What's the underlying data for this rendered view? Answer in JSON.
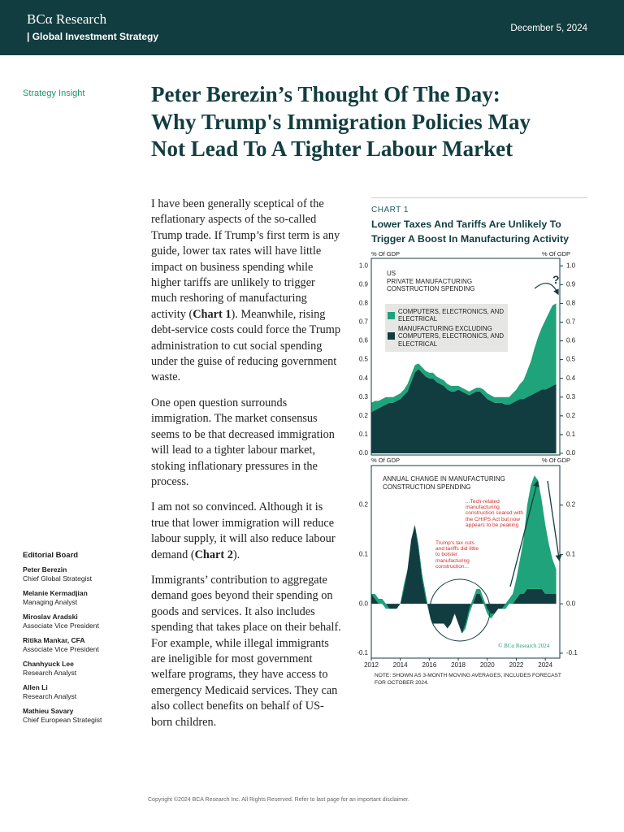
{
  "header": {
    "logo": "BCα Research",
    "subtitle": "| Global Investment Strategy",
    "date": "December 5, 2024"
  },
  "section_label": "Strategy Insight",
  "title_lines": [
    "Peter Berezin’s Thought Of The Day:",
    "Why Trump's Immigration Policies May",
    "Not Lead To A Tighter Labour Market"
  ],
  "body": {
    "paragraphs": [
      [
        "I have been generally sceptical of the reflationary aspects of the so-called Trump trade. If Trump’s first term is any guide, lower tax rates will have little impact on business spending while higher tariffs are unlikely to trigger much reshoring of manufacturing activity (",
        "Chart 1",
        "). Meanwhile, rising debt-service costs could force the Trump administration to cut social spending under the guise of reducing government waste."
      ],
      [
        "One open question surrounds immigration. The market consensus seems to be that decreased immigration will lead to a tighter labour market, stoking inflationary pressures in the process."
      ],
      [
        "I am not so convinced. Although it is true that lower immigration will reduce labour supply, it will also reduce labour demand (",
        "Chart 2",
        ")."
      ],
      [
        "Immigrants’ contribution to aggregate demand goes beyond their spending on goods and services. It also includes spending that takes place on their behalf. For example, while illegal immigrants are ineligible for most government welfare programs, they have access to emergency Medicaid services. They can also collect benefits on behalf of US-born children."
      ]
    ]
  },
  "editorial_board": {
    "title": "Editorial Board",
    "members": [
      {
        "name": "Peter Berezin",
        "role": "Chief Global Strategist"
      },
      {
        "name": "Melanie Kermadjian",
        "role": "Managing Analyst"
      },
      {
        "name": "Miroslav Aradski",
        "role": "Associate Vice President"
      },
      {
        "name": "Ritika Mankar, CFA",
        "role": "Associate Vice President"
      },
      {
        "name": "Chanhyuck Lee",
        "role": "Research Analyst"
      },
      {
        "name": "Allen Li",
        "role": "Research Analyst"
      },
      {
        "name": "Mathieu Savary",
        "role": "Chief European Strategist"
      }
    ]
  },
  "footer": "Copyright ©2024 BCA Research Inc. All Rights Reserved. Refer to last page for an important disclaimer.",
  "chart_data": [
    {
      "type": "area",
      "stacked": true,
      "label": "CHART 1",
      "title": "Lower Taxes And Tariffs Are Unlikely To Trigger A Boost In Manufacturing Activity",
      "ylabel": "% Of GDP",
      "annotations": [
        "US",
        "PRIVATE MANUFACTURING",
        "CONSTRUCTION SPENDING",
        "?"
      ],
      "x": [
        2012,
        2012.25,
        2012.5,
        2012.75,
        2013,
        2013.25,
        2013.5,
        2013.75,
        2014,
        2014.25,
        2014.5,
        2014.75,
        2015,
        2015.25,
        2015.5,
        2015.75,
        2016,
        2016.25,
        2016.5,
        2016.75,
        2017,
        2017.25,
        2017.5,
        2017.75,
        2018,
        2018.25,
        2018.5,
        2018.75,
        2019,
        2019.25,
        2019.5,
        2019.75,
        2020,
        2020.25,
        2020.5,
        2020.75,
        2021,
        2021.25,
        2021.5,
        2021.75,
        2022,
        2022.25,
        2022.5,
        2022.75,
        2023,
        2023.25,
        2023.5,
        2023.75,
        2024,
        2024.25,
        2024.5,
        2024.75
      ],
      "xlim": [
        2012,
        2025
      ],
      "ylim": [
        0,
        1.04
      ],
      "yticks": [
        {
          "value": 0,
          "label": "0.0"
        },
        0.1,
        0.2,
        0.3,
        0.4,
        0.5,
        0.6,
        0.7,
        0.8,
        0.9,
        {
          "value": 1,
          "label": "1.0"
        }
      ],
      "series": [
        {
          "name": "MANUFACTURING EXCLUDING COMPUTERS, ELECTRONICS, AND ELECTRICAL",
          "color": "#123d40",
          "values": [
            0.22,
            0.23,
            0.24,
            0.25,
            0.26,
            0.27,
            0.27,
            0.28,
            0.29,
            0.31,
            0.33,
            0.38,
            0.43,
            0.45,
            0.43,
            0.41,
            0.4,
            0.4,
            0.38,
            0.37,
            0.36,
            0.34,
            0.33,
            0.33,
            0.34,
            0.33,
            0.32,
            0.31,
            0.32,
            0.33,
            0.33,
            0.31,
            0.29,
            0.28,
            0.27,
            0.27,
            0.27,
            0.26,
            0.26,
            0.27,
            0.28,
            0.29,
            0.29,
            0.3,
            0.31,
            0.32,
            0.33,
            0.34,
            0.34,
            0.35,
            0.36,
            0.37
          ]
        },
        {
          "name": "COMPUTERS, ELECTRONICS, AND ELECTRICAL",
          "color": "#1fa37a",
          "values": [
            0.05,
            0.05,
            0.04,
            0.04,
            0.04,
            0.03,
            0.03,
            0.03,
            0.03,
            0.03,
            0.04,
            0.04,
            0.04,
            0.03,
            0.03,
            0.03,
            0.03,
            0.03,
            0.03,
            0.03,
            0.03,
            0.03,
            0.03,
            0.03,
            0.02,
            0.02,
            0.02,
            0.02,
            0.02,
            0.02,
            0.02,
            0.03,
            0.03,
            0.03,
            0.03,
            0.03,
            0.03,
            0.04,
            0.04,
            0.05,
            0.06,
            0.08,
            0.1,
            0.14,
            0.18,
            0.24,
            0.29,
            0.33,
            0.37,
            0.4,
            0.43,
            0.43
          ]
        }
      ]
    },
    {
      "type": "area",
      "stacked": true,
      "ylabel": "% Of GDP",
      "annotations": [
        "ANNUAL CHANGE IN MANUFACTURING CONSTRUCTION SPENDING",
        "...Tech-related manufacturing construction soared with the CHIPS Act but now appears to be peaking",
        "Trump's tax cuts and tariffs did little to bolster manufacturing construction...",
        "© BCα Research 2024"
      ],
      "note": "NOTE: SHOWN AS 3-MONTH MOVING AVERAGES, INCLUDES FORECAST FOR OCTOBER 2024.",
      "x": [
        2012,
        2012.25,
        2012.5,
        2012.75,
        2013,
        2013.25,
        2013.5,
        2013.75,
        2014,
        2014.25,
        2014.5,
        2014.75,
        2015,
        2015.25,
        2015.5,
        2015.75,
        2016,
        2016.25,
        2016.5,
        2016.75,
        2017,
        2017.25,
        2017.5,
        2017.75,
        2018,
        2018.25,
        2018.5,
        2018.75,
        2019,
        2019.25,
        2019.5,
        2019.75,
        2020,
        2020.25,
        2020.5,
        2020.75,
        2021,
        2021.25,
        2021.5,
        2021.75,
        2022,
        2022.25,
        2022.5,
        2022.75,
        2023,
        2023.25,
        2023.5,
        2023.75,
        2024,
        2024.25,
        2024.5,
        2024.75
      ],
      "xlim": [
        2012,
        2025
      ],
      "xticks": [
        2012,
        2014,
        2016,
        2018,
        2020,
        2022,
        2024
      ],
      "ylim": [
        -0.11,
        0.28
      ],
      "yticks": [
        -0.1,
        {
          "value": 0,
          "label": "0.0"
        },
        0.1,
        0.2
      ],
      "series": [
        {
          "color": "#123d40",
          "values": [
            0.02,
            0.02,
            0.01,
            0.01,
            0,
            -0.01,
            -0.01,
            -0.01,
            0,
            0.03,
            0.07,
            0.13,
            0.16,
            0.12,
            0.06,
            0.02,
            -0.02,
            -0.04,
            -0.04,
            -0.04,
            -0.04,
            -0.05,
            -0.04,
            -0.02,
            -0.04,
            -0.06,
            -0.05,
            -0.02,
            0,
            0.02,
            0.02,
            0,
            -0.02,
            -0.03,
            -0.02,
            -0.01,
            -0.01,
            -0.01,
            0,
            0,
            0.01,
            0.02,
            0.02,
            0.03,
            0.03,
            0.03,
            0.03,
            0.03,
            0.02,
            0.02,
            0.02,
            0.02
          ]
        },
        {
          "color": "#1fa37a",
          "values": [
            0,
            -0.01,
            -0.01,
            -0.01,
            -0.01,
            0,
            0,
            0,
            0,
            0.01,
            0,
            0,
            0,
            -0.01,
            -0.01,
            -0.01,
            0,
            0,
            0,
            0,
            0,
            0,
            0,
            0,
            0,
            0,
            0.01,
            0.01,
            0.01,
            0.01,
            0.01,
            0.01,
            0.01,
            0.01,
            0,
            0,
            0,
            0.01,
            0.01,
            0.02,
            0.04,
            0.07,
            0.11,
            0.17,
            0.21,
            0.23,
            0.22,
            0.18,
            0.14,
            0.1,
            0.07,
            0.05
          ]
        }
      ]
    }
  ]
}
